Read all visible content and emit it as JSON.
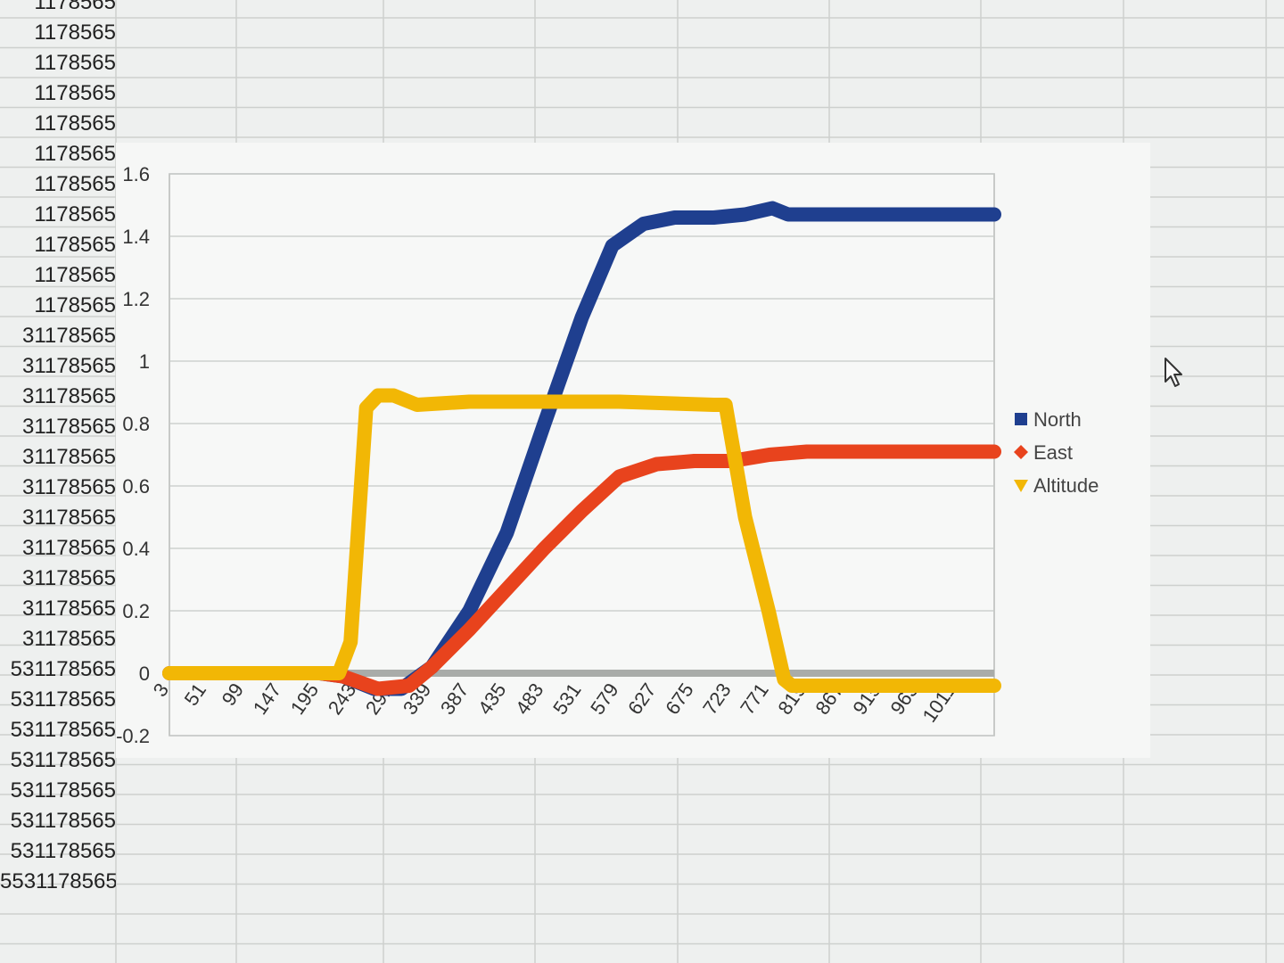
{
  "sheet": {
    "cells": [
      {
        "text": "1178565"
      },
      {
        "text": "1178565"
      },
      {
        "text": "1178565"
      },
      {
        "text": "1178565"
      },
      {
        "text": "1178565"
      },
      {
        "text": "1178565"
      },
      {
        "text": "1178565"
      },
      {
        "text": "1178565"
      },
      {
        "text": "1178565"
      },
      {
        "text": "1178565"
      },
      {
        "text": "1178565"
      },
      {
        "text": "31178565"
      },
      {
        "text": "31178565"
      },
      {
        "text": "31178565"
      },
      {
        "text": "31178565"
      },
      {
        "text": "31178565"
      },
      {
        "text": "31178565"
      },
      {
        "text": "31178565"
      },
      {
        "text": "31178565"
      },
      {
        "text": "31178565"
      },
      {
        "text": "31178565"
      },
      {
        "text": "31178565"
      },
      {
        "text": "531178565"
      },
      {
        "text": "531178565"
      },
      {
        "text": "531178565"
      },
      {
        "text": "531178565"
      },
      {
        "text": "531178565"
      },
      {
        "text": "531178565"
      },
      {
        "text": "531178565"
      },
      {
        "text": "5531178565"
      }
    ]
  },
  "chart_data": {
    "type": "line",
    "x": [
      3,
      51,
      99,
      147,
      195,
      243,
      291,
      339,
      387,
      435,
      483,
      531,
      579,
      627,
      675,
      723,
      771,
      819,
      867,
      915,
      963,
      1011
    ],
    "x_extent": [
      3,
      1059
    ],
    "ylim": [
      -0.2,
      1.6
    ],
    "yticks": [
      -0.2,
      0,
      0.2,
      0.4,
      0.6,
      0.8,
      1,
      1.2,
      1.4,
      1.6
    ],
    "ytick_labels": [
      "-0.2",
      "0",
      "0.2",
      "0.4",
      "0.6",
      "0.8",
      "1",
      "1.2",
      "1.4",
      "1.6"
    ],
    "grid": true,
    "legend_position": "right",
    "series": [
      {
        "name": "North",
        "color": "#1f3f8f",
        "marker": "square",
        "points": [
          [
            3,
            0
          ],
          [
            195,
            0
          ],
          [
            225,
            -0.01
          ],
          [
            265,
            -0.05
          ],
          [
            300,
            -0.05
          ],
          [
            339,
            0.02
          ],
          [
            387,
            0.2
          ],
          [
            435,
            0.45
          ],
          [
            483,
            0.8
          ],
          [
            531,
            1.14
          ],
          [
            570,
            1.37
          ],
          [
            610,
            1.44
          ],
          [
            650,
            1.46
          ],
          [
            700,
            1.46
          ],
          [
            740,
            1.47
          ],
          [
            775,
            1.49
          ],
          [
            795,
            1.47
          ],
          [
            840,
            1.47
          ],
          [
            1059,
            1.47
          ]
        ]
      },
      {
        "name": "East",
        "color": "#e8431d",
        "marker": "diamond",
        "points": [
          [
            3,
            0
          ],
          [
            195,
            0
          ],
          [
            225,
            -0.01
          ],
          [
            270,
            -0.05
          ],
          [
            310,
            -0.04
          ],
          [
            339,
            0.02
          ],
          [
            387,
            0.14
          ],
          [
            435,
            0.27
          ],
          [
            483,
            0.4
          ],
          [
            531,
            0.52
          ],
          [
            579,
            0.63
          ],
          [
            627,
            0.67
          ],
          [
            675,
            0.68
          ],
          [
            723,
            0.68
          ],
          [
            771,
            0.7
          ],
          [
            819,
            0.71
          ],
          [
            1059,
            0.71
          ]
        ]
      },
      {
        "name": "Altitude",
        "color": "#f2b705",
        "marker": "triangle-down",
        "points": [
          [
            3,
            0
          ],
          [
            220,
            0
          ],
          [
            235,
            0.1
          ],
          [
            255,
            0.85
          ],
          [
            270,
            0.89
          ],
          [
            290,
            0.89
          ],
          [
            320,
            0.86
          ],
          [
            387,
            0.87
          ],
          [
            483,
            0.87
          ],
          [
            579,
            0.87
          ],
          [
            700,
            0.86
          ],
          [
            715,
            0.86
          ],
          [
            740,
            0.5
          ],
          [
            770,
            0.2
          ],
          [
            790,
            -0.02
          ],
          [
            800,
            -0.04
          ],
          [
            1059,
            -0.04
          ]
        ]
      }
    ]
  }
}
